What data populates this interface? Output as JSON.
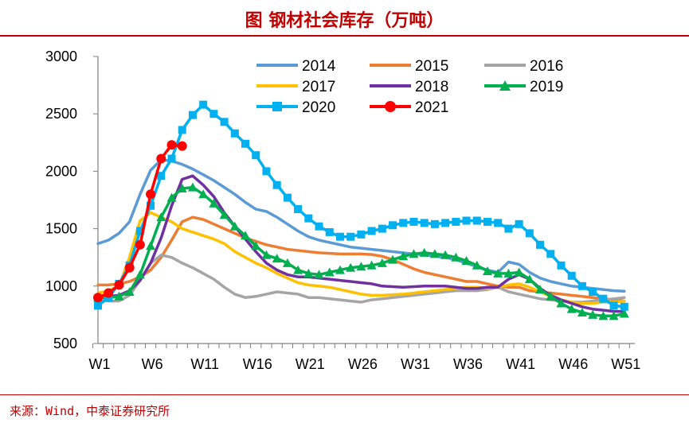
{
  "header": {
    "title": "图  钢材社会库存（万吨）"
  },
  "footer": {
    "source": "来源：Wind，中泰证券研究所"
  },
  "chart_data": {
    "type": "line",
    "title": "钢材社会库存（万吨）",
    "xlabel": "",
    "ylabel": "",
    "ylim": [
      500,
      3000
    ],
    "yticks": [
      500,
      1000,
      1500,
      2000,
      2500,
      3000
    ],
    "xticks": [
      "W1",
      "W6",
      "W11",
      "W16",
      "W21",
      "W26",
      "W31",
      "W36",
      "W41",
      "W46",
      "W51"
    ],
    "xtick_weeks": [
      1,
      6,
      11,
      16,
      21,
      26,
      31,
      36,
      41,
      46,
      51
    ],
    "xrange": [
      1,
      52
    ],
    "legend_position": "top-right",
    "series": [
      {
        "name": "2014",
        "color": "#5b9bd5",
        "marker": "none",
        "x": [
          1,
          2,
          3,
          4,
          5,
          6,
          7,
          8,
          9,
          10,
          11,
          12,
          13,
          14,
          15,
          16,
          17,
          18,
          19,
          20,
          21,
          22,
          23,
          24,
          25,
          26,
          27,
          28,
          29,
          30,
          31,
          32,
          33,
          34,
          35,
          36,
          37,
          38,
          39,
          40,
          41,
          42,
          43,
          44,
          45,
          46,
          47,
          48,
          49,
          50,
          51
        ],
        "values": [
          1370,
          1400,
          1460,
          1560,
          1800,
          2010,
          2100,
          2090,
          2060,
          2020,
          1970,
          1920,
          1860,
          1800,
          1730,
          1670,
          1650,
          1600,
          1540,
          1480,
          1430,
          1400,
          1380,
          1360,
          1340,
          1330,
          1320,
          1310,
          1300,
          1290,
          1280,
          1270,
          1260,
          1250,
          1230,
          1200,
          1170,
          1140,
          1120,
          1210,
          1190,
          1120,
          1070,
          1040,
          1020,
          1000,
          990,
          980,
          970,
          960,
          955
        ]
      },
      {
        "name": "2015",
        "color": "#ed7d31",
        "marker": "none",
        "x": [
          1,
          2,
          3,
          4,
          5,
          6,
          7,
          8,
          9,
          10,
          11,
          12,
          13,
          14,
          15,
          16,
          17,
          18,
          19,
          20,
          21,
          22,
          23,
          24,
          25,
          26,
          27,
          28,
          29,
          30,
          31,
          32,
          33,
          34,
          35,
          36,
          37,
          38,
          39,
          40,
          41,
          42,
          43,
          44,
          45,
          46,
          47,
          48,
          49,
          50,
          51
        ],
        "values": [
          1010,
          1010,
          1020,
          1040,
          1080,
          1140,
          1250,
          1400,
          1560,
          1600,
          1580,
          1540,
          1500,
          1460,
          1420,
          1390,
          1360,
          1340,
          1320,
          1310,
          1300,
          1290,
          1285,
          1280,
          1280,
          1280,
          1275,
          1260,
          1230,
          1190,
          1150,
          1120,
          1100,
          1080,
          1060,
          1040,
          1040,
          1020,
          1000,
          990,
          990,
          960,
          950,
          940,
          930,
          920,
          910,
          900,
          890,
          880,
          870
        ]
      },
      {
        "name": "2016",
        "color": "#a5a5a5",
        "marker": "none",
        "x": [
          1,
          2,
          3,
          4,
          5,
          6,
          7,
          8,
          9,
          10,
          11,
          12,
          13,
          14,
          15,
          16,
          17,
          18,
          19,
          20,
          21,
          22,
          23,
          24,
          25,
          26,
          27,
          28,
          29,
          30,
          31,
          32,
          33,
          34,
          35,
          36,
          37,
          38,
          39,
          40,
          41,
          42,
          43,
          44,
          45,
          46,
          47,
          48,
          49,
          50,
          51
        ],
        "values": [
          880,
          870,
          870,
          920,
          1050,
          1200,
          1270,
          1250,
          1200,
          1160,
          1110,
          1060,
          990,
          930,
          900,
          910,
          930,
          950,
          940,
          930,
          900,
          900,
          890,
          880,
          870,
          860,
          880,
          890,
          900,
          910,
          920,
          930,
          940,
          950,
          960,
          960,
          960,
          970,
          990,
          950,
          930,
          910,
          890,
          880,
          870,
          860,
          860,
          870,
          880,
          890,
          900
        ]
      },
      {
        "name": "2017",
        "color": "#ffc000",
        "marker": "none",
        "x": [
          1,
          2,
          3,
          4,
          5,
          6,
          7,
          8,
          9,
          10,
          11,
          12,
          13,
          14,
          15,
          16,
          17,
          18,
          19,
          20,
          21,
          22,
          23,
          24,
          25,
          26,
          27,
          28,
          29,
          30,
          31,
          32,
          33,
          34,
          35,
          36,
          37,
          38,
          39,
          40,
          41,
          42,
          43,
          44,
          45,
          46,
          47,
          48,
          49,
          50,
          51
        ],
        "values": [
          940,
          960,
          1000,
          1250,
          1570,
          1640,
          1600,
          1560,
          1500,
          1470,
          1440,
          1410,
          1370,
          1300,
          1250,
          1200,
          1160,
          1110,
          1070,
          1030,
          1010,
          1000,
          990,
          970,
          950,
          930,
          920,
          920,
          925,
          930,
          940,
          950,
          960,
          970,
          980,
          990,
          990,
          980,
          990,
          1010,
          1020,
          990,
          950,
          910,
          880,
          860,
          850,
          850,
          860,
          860,
          870
        ]
      },
      {
        "name": "2018",
        "color": "#7030a0",
        "marker": "none",
        "x": [
          1,
          2,
          3,
          4,
          5,
          6,
          7,
          8,
          9,
          10,
          11,
          12,
          13,
          14,
          15,
          16,
          17,
          18,
          19,
          20,
          21,
          22,
          23,
          24,
          25,
          26,
          27,
          28,
          29,
          30,
          31,
          32,
          33,
          34,
          35,
          36,
          37,
          38,
          39,
          40,
          41,
          42,
          43,
          44,
          45,
          46,
          47,
          48,
          49,
          50,
          51
        ],
        "values": [
          900,
          910,
          920,
          960,
          1050,
          1200,
          1420,
          1700,
          1930,
          1960,
          1880,
          1780,
          1640,
          1520,
          1410,
          1300,
          1200,
          1140,
          1100,
          1080,
          1080,
          1070,
          1060,
          1050,
          1040,
          1030,
          1020,
          1000,
          995,
          990,
          995,
          1000,
          1000,
          1000,
          990,
          980,
          980,
          990,
          990,
          1060,
          1100,
          1060,
          980,
          920,
          880,
          850,
          820,
          800,
          790,
          780,
          780
        ]
      },
      {
        "name": "2019",
        "color": "#00b050",
        "marker": "triangle",
        "x": [
          1,
          2,
          3,
          4,
          5,
          6,
          7,
          8,
          9,
          10,
          11,
          12,
          13,
          14,
          15,
          16,
          17,
          18,
          19,
          20,
          21,
          22,
          23,
          24,
          25,
          26,
          27,
          28,
          29,
          30,
          31,
          32,
          33,
          34,
          35,
          36,
          37,
          38,
          39,
          40,
          41,
          42,
          43,
          44,
          45,
          46,
          47,
          48,
          49,
          50,
          51
        ],
        "values": [
          900,
          900,
          910,
          950,
          1100,
          1350,
          1600,
          1770,
          1850,
          1860,
          1800,
          1720,
          1620,
          1520,
          1440,
          1350,
          1270,
          1240,
          1200,
          1140,
          1110,
          1100,
          1120,
          1140,
          1160,
          1170,
          1180,
          1200,
          1230,
          1260,
          1280,
          1290,
          1280,
          1270,
          1250,
          1220,
          1180,
          1130,
          1110,
          1110,
          1120,
          1060,
          970,
          910,
          850,
          800,
          770,
          750,
          740,
          740,
          760
        ]
      },
      {
        "name": "2020",
        "color": "#00b0f0",
        "marker": "square",
        "x": [
          1,
          2,
          3,
          4,
          5,
          6,
          7,
          8,
          9,
          10,
          11,
          12,
          13,
          14,
          15,
          16,
          17,
          18,
          19,
          20,
          21,
          22,
          23,
          24,
          25,
          26,
          27,
          28,
          29,
          30,
          31,
          32,
          33,
          34,
          35,
          36,
          37,
          38,
          39,
          40,
          41,
          42,
          43,
          44,
          45,
          46,
          47,
          48,
          49,
          50,
          51
        ],
        "values": [
          830,
          900,
          1020,
          1180,
          1480,
          1700,
          1960,
          2110,
          2360,
          2490,
          2580,
          2500,
          2430,
          2330,
          2240,
          2140,
          2000,
          1880,
          1770,
          1670,
          1590,
          1520,
          1470,
          1430,
          1430,
          1450,
          1480,
          1500,
          1530,
          1550,
          1560,
          1550,
          1540,
          1550,
          1560,
          1570,
          1570,
          1560,
          1550,
          1500,
          1540,
          1460,
          1360,
          1280,
          1180,
          1090,
          1000,
          950,
          890,
          830,
          820
        ]
      },
      {
        "name": "2021",
        "color": "#ff0000",
        "marker": "circle",
        "x": [
          1,
          2,
          3,
          4,
          5,
          6,
          7,
          8,
          9
        ],
        "values": [
          900,
          940,
          1010,
          1160,
          1360,
          1800,
          2110,
          2230,
          2220
        ]
      }
    ]
  }
}
